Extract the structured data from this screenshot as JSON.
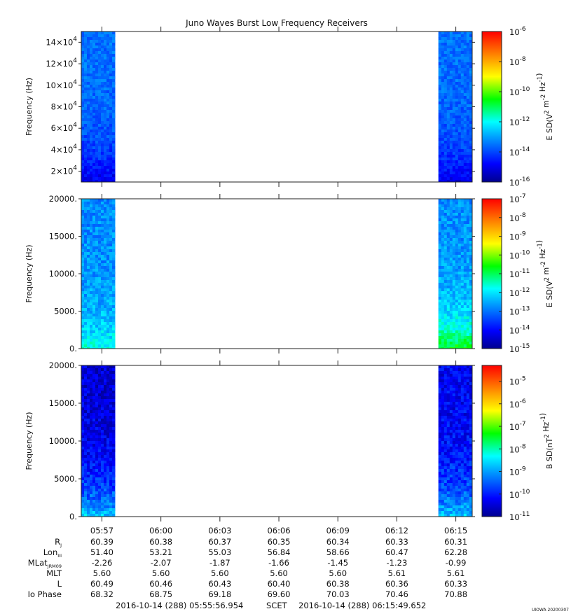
{
  "title": "Juno Waves Burst Low Frequency Receivers",
  "stamp": "UIOWA 20200307",
  "chart_data": [
    {
      "type": "heatmap",
      "ylabel": "Frequency (Hz)",
      "colorbar_label": "E SD(V^2 m^-2 Hz^-1)",
      "ylim": [
        10000,
        150000
      ],
      "yticks": [
        20000,
        40000,
        60000,
        80000,
        100000,
        120000,
        140000
      ],
      "ytick_labels": [
        {
          "m": "2",
          "e": "4"
        },
        {
          "m": "4",
          "e": "4"
        },
        {
          "m": "6",
          "e": "4"
        },
        {
          "m": "8",
          "e": "4"
        },
        {
          "m": "10",
          "e": "4"
        },
        {
          "m": "12",
          "e": "4"
        },
        {
          "m": "14",
          "e": "4"
        }
      ],
      "colorbar_range_log10": [
        -16,
        -6
      ],
      "colorbar_ticks_log10": [
        -16,
        -14,
        -12,
        -10,
        -8,
        -6
      ],
      "blocks": [
        {
          "x_start": "05:55:57",
          "x_end": "05:57:40",
          "dominant_log10": -13.5,
          "low_freq_band_log10": -15.2
        },
        {
          "x_start": "06:14:07",
          "x_end": "06:15:50",
          "dominant_log10": -13.5,
          "low_freq_band_log10": -15.2
        }
      ]
    },
    {
      "type": "heatmap",
      "ylabel": "Frequency (Hz)",
      "colorbar_label": "E SD(V^2 m^-2 Hz^-1)",
      "ylim": [
        0,
        20000
      ],
      "yticks": [
        0,
        5000,
        10000,
        15000,
        20000
      ],
      "ytick_labels": [
        "0.",
        "5000.",
        "10000.",
        "15000.",
        "20000."
      ],
      "colorbar_range_log10": [
        -15,
        -7
      ],
      "colorbar_ticks_log10": [
        -15,
        -14,
        -13,
        -12,
        -11,
        -10,
        -9,
        -8,
        -7
      ],
      "blocks": [
        {
          "x_start": "05:55:57",
          "x_end": "05:57:40",
          "dominant_log10": -12.8,
          "low_freq_band_log10": -11.6
        },
        {
          "x_start": "06:14:07",
          "x_end": "06:15:50",
          "dominant_log10": -12.8,
          "low_freq_band_log10": -10.5
        }
      ]
    },
    {
      "type": "heatmap",
      "ylabel": "Frequency (Hz)",
      "colorbar_label": "B SD(nT^2 Hz^-1)",
      "ylim": [
        0,
        20000
      ],
      "yticks": [
        0,
        5000,
        10000,
        15000,
        20000
      ],
      "ytick_labels": [
        "0.",
        "5000.",
        "10000.",
        "15000.",
        "20000."
      ],
      "colorbar_range_log10": [
        -11,
        -4.3
      ],
      "colorbar_ticks_log10": [
        -11,
        -10,
        -9,
        -8,
        -7,
        -6,
        -5
      ],
      "blocks": [
        {
          "x_start": "05:55:57",
          "x_end": "05:57:40",
          "dominant_log10": -10.5,
          "low_freq_band_log10": -8.5
        },
        {
          "x_start": "06:14:07",
          "x_end": "06:15:50",
          "dominant_log10": -10.3,
          "low_freq_band_log10": -8.6
        }
      ]
    }
  ],
  "x_axis": {
    "range": [
      "05:55:57",
      "06:15:50"
    ],
    "tick_labels": [
      "05:57",
      "06:00",
      "06:03",
      "06:06",
      "06:09",
      "06:12",
      "06:15"
    ]
  },
  "ephemeris": {
    "rows": [
      {
        "label": "R",
        "sub": "J",
        "values": [
          "60.39",
          "60.38",
          "60.37",
          "60.35",
          "60.34",
          "60.33",
          "60.31"
        ]
      },
      {
        "label": "Lon",
        "sub": "III",
        "values": [
          "51.40",
          "53.21",
          "55.03",
          "56.84",
          "58.66",
          "60.47",
          "62.28"
        ]
      },
      {
        "label": "MLat",
        "sub": "JRM09",
        "values": [
          "-2.26",
          "-2.07",
          "-1.87",
          "-1.66",
          "-1.45",
          "-1.23",
          "-0.99"
        ]
      },
      {
        "label": "MLT",
        "sub": "",
        "values": [
          "5.60",
          "5.60",
          "5.60",
          "5.60",
          "5.60",
          "5.61",
          "5.61"
        ]
      },
      {
        "label": "L",
        "sub": "",
        "values": [
          "60.49",
          "60.46",
          "60.43",
          "60.40",
          "60.38",
          "60.36",
          "60.33"
        ]
      },
      {
        "label": "Io Phase",
        "sub": "",
        "values": [
          "68.32",
          "68.75",
          "69.18",
          "69.60",
          "70.03",
          "70.46",
          "70.88"
        ]
      }
    ]
  },
  "footer": {
    "start": "2016-10-14 (288) 05:55:56.954",
    "mid": "SCET",
    "end": "2016-10-14 (288) 06:15:49.652"
  }
}
